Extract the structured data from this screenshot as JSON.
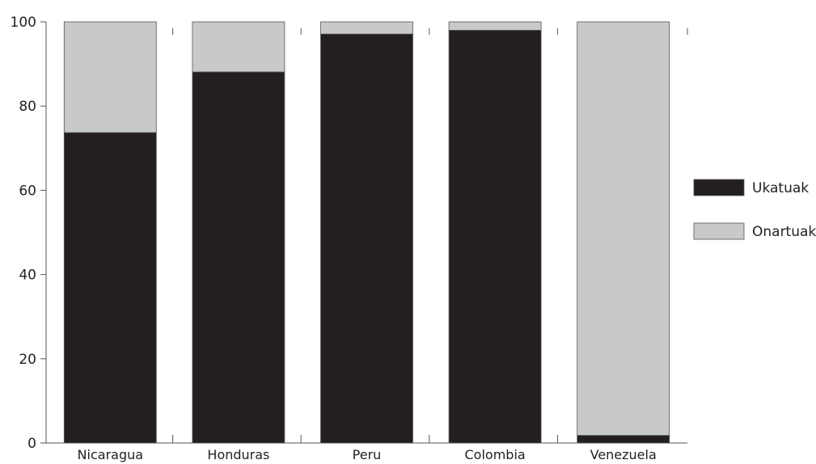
{
  "chart_data": {
    "type": "bar",
    "stacked": true,
    "categories": [
      "Nicaragua",
      "Honduras",
      "Peru",
      "Colombia",
      "Venezuela"
    ],
    "series": [
      {
        "name": "Ukatuak",
        "values": [
          73.7,
          88.1,
          97.1,
          98.0,
          1.8
        ],
        "color": "#231f20"
      },
      {
        "name": "Onartuak",
        "values": [
          26.3,
          11.9,
          2.9,
          2.0,
          98.2
        ],
        "color": "#c8c9cb"
      }
    ],
    "ylim": [
      0,
      100
    ],
    "yticks": [
      0,
      20,
      40,
      60,
      80,
      100
    ],
    "legend_position": "right"
  }
}
